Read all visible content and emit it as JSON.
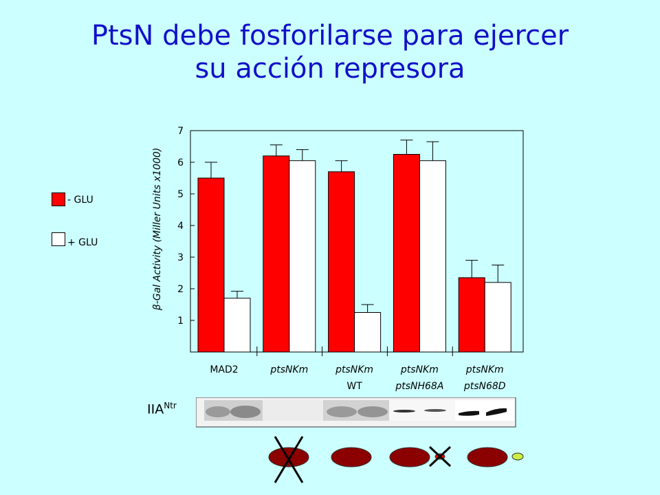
{
  "header": {
    "title_line1": "PtsN debe fosforilarse para ejercer",
    "title_line2": "su acción represora"
  },
  "legend": {
    "minus_glu": "- GLU",
    "plus_glu": "+ GLU",
    "minus_color": "#ff0000",
    "plus_color": "#ffffff"
  },
  "chart_data": {
    "type": "bar",
    "ylabel": "β-Gal Activity (Miller Units x1000)",
    "ylim": [
      0,
      7
    ],
    "yticks": [
      1,
      2,
      3,
      4,
      5,
      6,
      7
    ],
    "categories": [
      {
        "line1": "MAD2",
        "line2": ""
      },
      {
        "line1": "ptsNKm",
        "line2": ""
      },
      {
        "line1": "ptsNKm",
        "line2": "WT"
      },
      {
        "line1": "ptsNKm",
        "line2": "ptsNH68A"
      },
      {
        "line1": "ptsNKm",
        "line2": "ptsN68D"
      }
    ],
    "series": [
      {
        "name": "- GLU",
        "color": "#ff0000",
        "values": [
          5.5,
          6.2,
          5.7,
          6.25,
          2.35
        ],
        "errors": [
          0.5,
          0.35,
          0.35,
          0.45,
          0.55
        ]
      },
      {
        "name": "+ GLU",
        "color": "#ffffff",
        "values": [
          1.7,
          6.05,
          1.25,
          6.05,
          2.2
        ],
        "errors": [
          0.22,
          0.35,
          0.25,
          0.6,
          0.55
        ]
      }
    ]
  },
  "blot": {
    "label_main": "IIA",
    "label_sup": "Ntr"
  }
}
